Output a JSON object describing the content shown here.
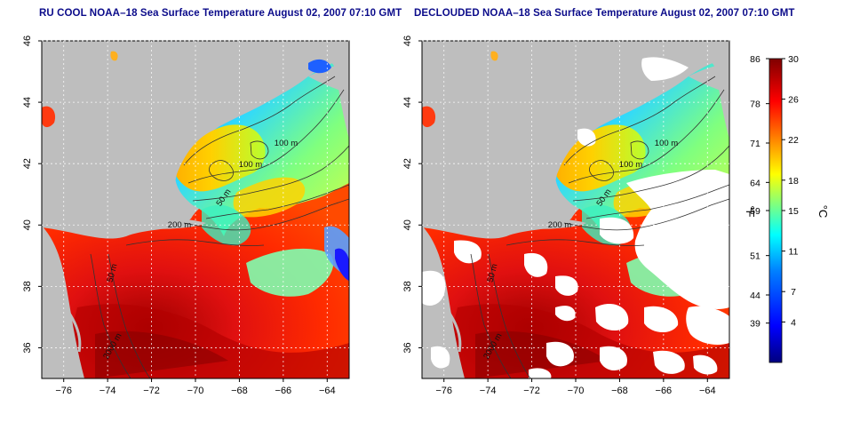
{
  "panels": [
    {
      "id": "left",
      "title": "RU COOL NOAA–18 Sea Surface Temperature August 02, 2007 07:10 GMT",
      "contour_labels": [
        "100 m",
        "100 m",
        "50 m",
        "200 m",
        "50 m",
        "2000 m"
      ]
    },
    {
      "id": "right",
      "title": "DECLOUDED NOAA–18 Sea Surface Temperature August 02, 2007 07:10 GMT",
      "contour_labels": [
        "100 m",
        "100 m",
        "50 m",
        "200 m",
        "50 m",
        "2000 m"
      ]
    }
  ],
  "axes": {
    "x_ticks": [
      "−76",
      "−74",
      "−72",
      "−70",
      "−68",
      "−66",
      "−64"
    ],
    "x_values": [
      -76,
      -74,
      -72,
      -70,
      -68,
      -66,
      -64
    ],
    "x_range": [
      -77,
      -63
    ],
    "y_ticks": [
      "36",
      "38",
      "40",
      "42",
      "44",
      "46"
    ],
    "y_values": [
      36,
      38,
      40,
      42,
      44,
      46
    ],
    "y_range": [
      35,
      46
    ]
  },
  "colorbar": {
    "fahrenheit_label": "°F",
    "celsius_label": "°C",
    "fahrenheit_ticks": [
      "86",
      "78",
      "71",
      "64",
      "59",
      "51",
      "44",
      "39"
    ],
    "celsius_ticks": [
      "30",
      "26",
      "22",
      "18",
      "15",
      "11",
      "7",
      "4"
    ],
    "celsius_values": [
      30,
      26,
      22,
      18,
      15,
      11,
      7,
      4
    ],
    "fahrenheit_values": [
      86,
      78,
      71,
      64,
      59,
      51,
      44,
      39
    ],
    "celsius_range": [
      0,
      30
    ],
    "colors": [
      "#00007f",
      "#0000ff",
      "#007fff",
      "#00ffff",
      "#7fff7f",
      "#ffff00",
      "#ff7f00",
      "#ff0000",
      "#7f0000"
    ]
  },
  "colors": {
    "land": "#bebebe",
    "cloud": "#ffffff",
    "title": "#0b0b8a",
    "contour": "#333333",
    "grid": "#ffffff"
  }
}
